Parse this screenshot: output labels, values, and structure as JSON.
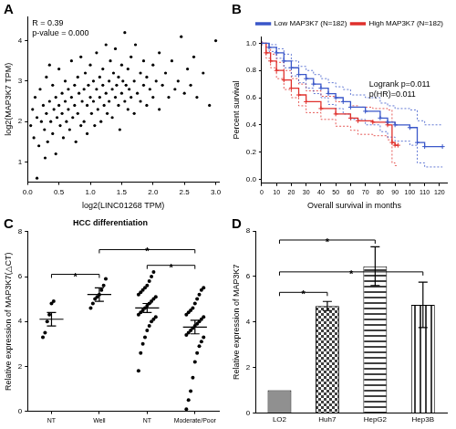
{
  "chart_data": [
    {
      "panel": "A",
      "type": "scatter",
      "x_label": "log2(LINC01268 TPM)",
      "y_label": "log2(MAP3K7 TPM)",
      "annotations": [
        "R = 0.39",
        "p-value = 0.000"
      ],
      "color": "#000000",
      "marker": "circle",
      "grid": false,
      "xlim": [
        0,
        3.05
      ],
      "xticks": [
        {
          "value": 0,
          "label": "0.0"
        },
        0.5,
        {
          "value": 1,
          "label": "1.0"
        },
        1.5,
        {
          "value": 2,
          "label": "2.0"
        },
        2.5,
        {
          "value": 3,
          "label": "3.0"
        }
      ],
      "ylim": [
        0.5,
        4.6
      ],
      "yticks": [
        1,
        2,
        3,
        4
      ],
      "x": [
        0.05,
        0.08,
        0.1,
        0.12,
        0.15,
        0.18,
        0.2,
        0.22,
        0.25,
        0.27,
        0.3,
        0.3,
        0.32,
        0.35,
        0.37,
        0.4,
        0.4,
        0.42,
        0.45,
        0.45,
        0.47,
        0.5,
        0.5,
        0.52,
        0.55,
        0.55,
        0.57,
        0.6,
        0.6,
        0.62,
        0.65,
        0.65,
        0.67,
        0.7,
        0.7,
        0.72,
        0.75,
        0.75,
        0.77,
        0.8,
        0.8,
        0.82,
        0.85,
        0.85,
        0.87,
        0.9,
        0.9,
        0.92,
        0.95,
        0.95,
        0.97,
        1.0,
        1.0,
        1.02,
        1.05,
        1.05,
        1.07,
        1.1,
        1.1,
        1.12,
        1.15,
        1.15,
        1.17,
        1.2,
        1.2,
        1.22,
        1.25,
        1.25,
        1.27,
        1.3,
        1.3,
        1.32,
        1.35,
        1.35,
        1.37,
        1.4,
        1.4,
        1.42,
        1.45,
        1.45,
        1.47,
        1.5,
        1.5,
        1.52,
        1.55,
        1.55,
        1.57,
        1.6,
        1.6,
        1.62,
        1.65,
        1.65,
        1.7,
        1.7,
        1.72,
        1.75,
        1.8,
        1.8,
        1.85,
        1.85,
        1.9,
        1.9,
        1.95,
        2.0,
        2.0,
        2.05,
        2.1,
        2.1,
        2.15,
        2.2,
        2.25,
        2.3,
        2.35,
        2.4,
        2.45,
        2.5,
        2.55,
        2.6,
        2.65,
        2.7,
        2.8,
        2.9,
        3.0,
        0.15,
        0.35,
        0.28
      ],
      "values": [
        1.9,
        2.3,
        1.6,
        2.6,
        2.1,
        1.4,
        2.8,
        2.0,
        2.4,
        1.8,
        2.2,
        3.1,
        1.5,
        2.5,
        2.0,
        2.9,
        1.7,
        2.3,
        2.6,
        1.2,
        2.1,
        3.3,
        2.4,
        1.9,
        2.7,
        2.2,
        1.6,
        2.5,
        3.0,
        2.0,
        2.8,
        2.3,
        1.8,
        3.5,
        2.6,
        2.1,
        2.9,
        2.4,
        1.5,
        3.1,
        2.2,
        2.7,
        1.9,
        3.6,
        2.5,
        2.8,
        2.0,
        3.2,
        2.4,
        1.7,
        2.9,
        2.6,
        3.4,
        2.2,
        3.0,
        2.5,
        1.9,
        2.8,
        3.7,
        2.3,
        3.1,
        2.6,
        2.0,
        2.9,
        3.3,
        2.4,
        2.7,
        3.9,
        2.2,
        3.0,
        2.5,
        3.5,
        2.8,
        2.1,
        3.2,
        2.6,
        3.8,
        2.9,
        2.4,
        3.1,
        1.8,
        2.7,
        3.4,
        3.0,
        2.5,
        4.2,
        2.9,
        3.3,
        2.3,
        2.8,
        3.6,
        2.6,
        3.0,
        2.2,
        3.9,
        2.7,
        3.2,
        2.5,
        2.9,
        3.5,
        2.4,
        3.1,
        2.8,
        3.4,
        2.6,
        3.0,
        3.7,
        2.3,
        2.9,
        3.2,
        2.6,
        3.5,
        2.8,
        3.0,
        4.1,
        2.7,
        3.3,
        2.9,
        3.6,
        2.6,
        3.2,
        2.4,
        4.0,
        0.6,
        3.4,
        1.1
      ]
    },
    {
      "panel": "B",
      "type": "line",
      "x_label": "Overall survival in months",
      "y_label": "Percent survival",
      "annotations": [
        "Logrank p=0.011",
        "p(HR)=0.011"
      ],
      "legend": "upper right",
      "grid": false,
      "xlim": [
        0,
        125
      ],
      "xticks": [
        0,
        10,
        20,
        30,
        40,
        50,
        60,
        70,
        80,
        90,
        100,
        110,
        120
      ],
      "ylim": [
        -0.03,
        1.05
      ],
      "yticks": [
        {
          "value": 0,
          "label": "0.0"
        },
        0.2,
        0.4,
        0.6,
        0.8,
        {
          "value": 1,
          "label": "1.0"
        }
      ],
      "series": [
        {
          "name": "Low MAP3K7 (N=182)",
          "color": "#3a57c9",
          "marker": "cross",
          "line_style": "solid",
          "x": [
            0,
            5,
            10,
            15,
            20,
            25,
            30,
            35,
            40,
            45,
            50,
            55,
            60,
            70,
            80,
            85,
            90,
            100,
            105,
            110,
            122
          ],
          "values": [
            1,
            0.97,
            0.93,
            0.87,
            0.82,
            0.77,
            0.74,
            0.7,
            0.67,
            0.63,
            0.6,
            0.57,
            0.53,
            0.5,
            0.45,
            0.42,
            0.4,
            0.38,
            0.27,
            0.24,
            0.24
          ],
          "lower": [
            1,
            0.94,
            0.89,
            0.82,
            0.76,
            0.71,
            0.67,
            0.63,
            0.6,
            0.55,
            0.52,
            0.48,
            0.44,
            0.4,
            0.35,
            0.31,
            0.28,
            0.25,
            0.12,
            0.09,
            0.09
          ],
          "upper": [
            1,
            0.99,
            0.96,
            0.92,
            0.87,
            0.83,
            0.8,
            0.77,
            0.74,
            0.71,
            0.68,
            0.66,
            0.62,
            0.6,
            0.56,
            0.54,
            0.52,
            0.51,
            0.43,
            0.4,
            0.4
          ]
        },
        {
          "name": "High MAP3K7 (N=182)",
          "color": "#e0302c",
          "marker": "cross",
          "line_style": "solid",
          "x": [
            0,
            3,
            6,
            10,
            15,
            20,
            25,
            30,
            40,
            50,
            60,
            65,
            75,
            85,
            88,
            90,
            92
          ],
          "values": [
            1,
            0.93,
            0.87,
            0.8,
            0.73,
            0.67,
            0.62,
            0.57,
            0.52,
            0.48,
            0.45,
            0.43,
            0.42,
            0.4,
            0.27,
            0.25,
            0.25
          ],
          "lower": [
            1,
            0.89,
            0.82,
            0.74,
            0.66,
            0.6,
            0.54,
            0.49,
            0.44,
            0.39,
            0.36,
            0.33,
            0.32,
            0.29,
            0.12,
            0.1,
            0.1
          ],
          "upper": [
            1,
            0.97,
            0.92,
            0.86,
            0.8,
            0.74,
            0.7,
            0.65,
            0.61,
            0.57,
            0.54,
            0.53,
            0.52,
            0.51,
            0.42,
            0.4,
            0.4
          ]
        }
      ]
    },
    {
      "panel": "C",
      "type": "strip",
      "title": "HCC differentiation",
      "y_label": "Relative expression of MAP3K7(△CT)",
      "color": "#000000",
      "marker": "circle",
      "grid": false,
      "categories": [
        "NT",
        "Well",
        "NT",
        "Moderate/Poor"
      ],
      "ylim": [
        0,
        8
      ],
      "yticks": [
        0,
        2,
        4,
        6,
        8
      ],
      "groups": [
        [
          3.3,
          3.5,
          4.0,
          4.3,
          4.8,
          4.9
        ],
        [
          4.6,
          4.8,
          5.0,
          5.1,
          5.2,
          5.4,
          5.6,
          5.9
        ],
        [
          1.8,
          2.6,
          3.0,
          3.3,
          3.6,
          3.8,
          4.0,
          4.1,
          4.2,
          4.3,
          4.4,
          4.5,
          4.6,
          4.7,
          4.8,
          4.9,
          5.0,
          5.1,
          5.2,
          5.3,
          5.4,
          5.5,
          5.6,
          5.8,
          6.0,
          6.2
        ],
        [
          0.1,
          0.5,
          0.9,
          1.5,
          2.2,
          2.6,
          2.9,
          3.1,
          3.3,
          3.4,
          3.5,
          3.6,
          3.7,
          3.8,
          3.9,
          4.0,
          4.1,
          4.2,
          4.3,
          4.4,
          4.5,
          4.6,
          4.8,
          5.0,
          5.2,
          5.4,
          5.5
        ]
      ],
      "means": [
        4.1,
        5.2,
        4.6,
        3.75
      ],
      "errors": [
        0.3,
        0.3,
        0.2,
        0.3
      ],
      "brackets": [
        {
          "from": 0,
          "to": 1,
          "y": 6.1,
          "label": "*"
        },
        {
          "from": 2,
          "to": 3,
          "y": 6.5,
          "label": "*"
        },
        {
          "from": 1,
          "to": 3,
          "y": 7.2,
          "label": "*"
        }
      ]
    },
    {
      "panel": "D",
      "type": "bar",
      "y_label": "Relative expression of MAP3K7",
      "grid": false,
      "categories": [
        "LO2",
        "Huh7",
        "HepG2",
        "Hep3B"
      ],
      "values": [
        1,
        4.7,
        6.45,
        4.75
      ],
      "errors": [
        0,
        0.2,
        0.85,
        1.0
      ],
      "colors": [
        "#909090",
        "#404040",
        "#404040",
        "#404040"
      ],
      "ylim": [
        0,
        8
      ],
      "yticks": [
        0,
        2,
        4,
        6,
        8
      ],
      "brackets": [
        {
          "from": 0,
          "to": 1,
          "y": 5.3,
          "label": "*"
        },
        {
          "from": 0,
          "to": 3,
          "y": 6.2,
          "label": "*"
        },
        {
          "from": 0,
          "to": 2,
          "y": 7.6,
          "label": "*"
        }
      ]
    }
  ]
}
